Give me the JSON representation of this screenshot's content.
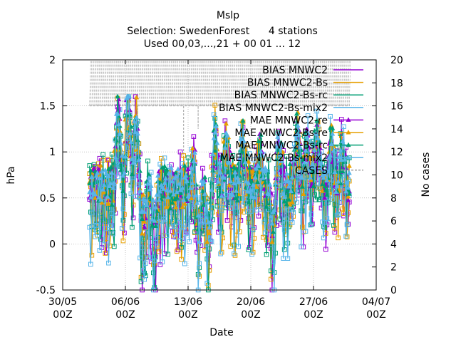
{
  "chart_data": {
    "type": "line",
    "title": "Mslp",
    "subtitle_lines": [
      "Selection: SwedenForest      4 stations",
      "Used 00,03,...,21 + 00 01 ... 12"
    ],
    "xlabel": "Date",
    "ylabel": "hPa",
    "y2label": "No cases",
    "xlim": [
      "2023-05-30",
      "2023-07-04"
    ],
    "ylim": [
      -0.5,
      2
    ],
    "y2lim": [
      0,
      20
    ],
    "x_start": "2023-06-02",
    "x_end": "2023-07-01",
    "x_ticks": [
      {
        "value": "2023-05-30",
        "label_top": "30/05",
        "label_bottom": "00Z"
      },
      {
        "value": "2023-06-06",
        "label_top": "06/06",
        "label_bottom": "00Z"
      },
      {
        "value": "2023-06-13",
        "label_top": "13/06",
        "label_bottom": "00Z"
      },
      {
        "value": "2023-06-20",
        "label_top": "20/06",
        "label_bottom": "00Z"
      },
      {
        "value": "2023-06-27",
        "label_top": "27/06",
        "label_bottom": "00Z"
      },
      {
        "value": "2023-07-04",
        "label_top": "04/07",
        "label_bottom": "00Z"
      }
    ],
    "y_ticks": [
      "-0.5",
      "0",
      "0.5",
      "1",
      "1.5",
      "2"
    ],
    "y2_ticks": [
      "0",
      "2",
      "4",
      "6",
      "8",
      "10",
      "12",
      "14",
      "16",
      "18",
      "20"
    ],
    "grid": true,
    "legend_position": "top-right",
    "series": [
      {
        "name": "BIAS MNWC2",
        "color": "#9400d3",
        "kind": "bias",
        "marker": "none"
      },
      {
        "name": "BIAS MNWC2-Bs",
        "color": "#e69f00",
        "kind": "bias",
        "marker": "none"
      },
      {
        "name": "BIAS MNWC2-Bs-rc",
        "color": "#009e73",
        "kind": "bias",
        "marker": "none"
      },
      {
        "name": "BIAS MNWC2-Bs-mix2",
        "color": "#56b4e9",
        "kind": "bias",
        "marker": "none"
      },
      {
        "name": "MAE MNWC2-re",
        "color": "#9400d3",
        "kind": "mae",
        "marker": "triangle"
      },
      {
        "name": "MAE MNWC2-Bs-re",
        "color": "#e69f00",
        "kind": "mae",
        "marker": "triangle"
      },
      {
        "name": "MAE MNWC2-Bs-rc",
        "color": "#009e73",
        "kind": "mae",
        "marker": "triangle"
      },
      {
        "name": "MAE MNWC2-Bs-mix2",
        "color": "#56b4e9",
        "kind": "mae",
        "marker": "triangle"
      },
      {
        "name": "CASES",
        "color": "#a0a0a0",
        "kind": "cases",
        "marker": "none"
      }
    ],
    "cases_value": 16,
    "cases_dips": [
      {
        "x": "2023-06-06T12:00",
        "value": 10
      },
      {
        "x": "2023-06-07T09:00",
        "value": 10
      },
      {
        "x": "2023-06-12T12:00",
        "value": 10
      },
      {
        "x": "2023-06-14T03:00",
        "value": 14
      }
    ]
  }
}
